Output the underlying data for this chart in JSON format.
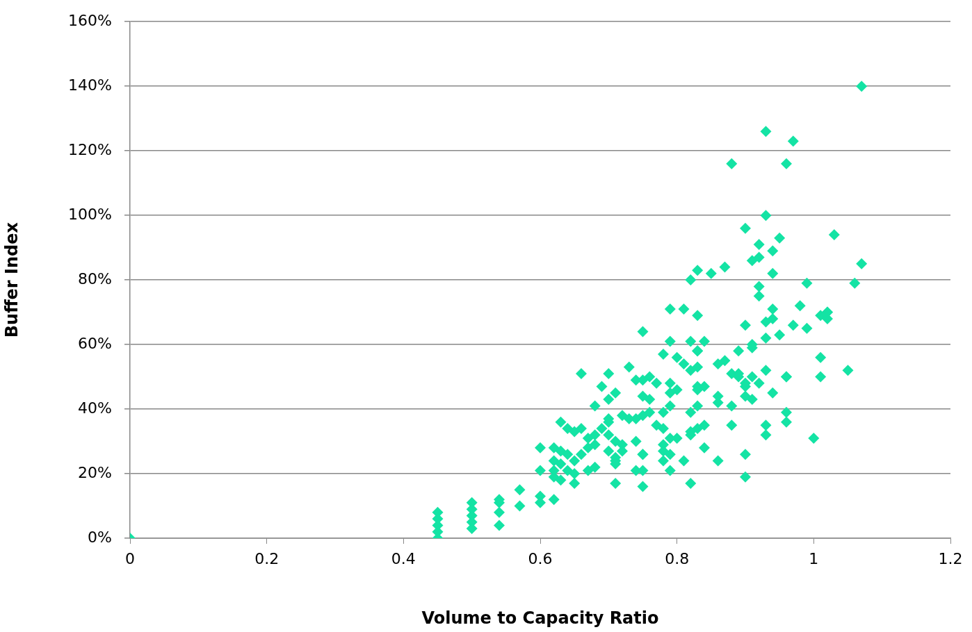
{
  "chart_data": {
    "type": "scatter",
    "xlabel": "Volume to Capacity Ratio",
    "ylabel": "Buffer Index",
    "marker": "diamond",
    "grid": "y",
    "legend": false,
    "xlim": [
      0,
      1.2
    ],
    "xticks": [
      0,
      0.2,
      0.4,
      0.6,
      0.8,
      1,
      1.2
    ],
    "ylim": [
      0,
      160
    ],
    "yticks": [
      {
        "value": 0,
        "label": "0%"
      },
      {
        "value": 20,
        "label": "20%"
      },
      {
        "value": 40,
        "label": "40%"
      },
      {
        "value": 60,
        "label": "60%"
      },
      {
        "value": 80,
        "label": "80%"
      },
      {
        "value": 100,
        "label": "100%"
      },
      {
        "value": 120,
        "label": "120%"
      },
      {
        "value": 140,
        "label": "140%"
      },
      {
        "value": 160,
        "label": "160%"
      }
    ],
    "series": [
      {
        "color": "#14e3a4",
        "x": [
          0,
          1.07,
          0.93,
          0.97,
          0.88,
          0.96,
          0.93,
          0.9,
          1.03,
          0.95,
          0.92,
          0.94,
          0.91,
          0.92,
          1.07,
          0.87,
          0.83,
          0.85,
          0.94,
          0.82,
          1.06,
          0.99,
          0.92,
          0.92,
          0.98,
          0.79,
          0.81,
          0.94,
          1.02,
          1.02,
          0.83,
          1.01,
          1.02,
          0.94,
          0.93,
          0.9,
          0.97,
          0.99,
          0.75,
          0.95,
          0.93,
          0.79,
          0.82,
          0.84,
          0.91,
          0.91,
          0.83,
          0.83,
          0.89,
          0.78,
          1.01,
          0.87,
          0.86,
          0.8,
          0.81,
          0.83,
          0.82,
          0.73,
          1.05,
          0.66,
          0.7,
          0.93,
          0.88,
          0.89,
          0.89,
          1.01,
          0.96,
          0.96,
          0.76,
          0.74,
          0.75,
          0.77,
          0.79,
          0.9,
          0.9,
          0.91,
          0.92,
          0.83,
          0.84,
          0.83,
          0.69,
          0.8,
          0.79,
          0.94,
          0.9,
          0.91,
          0.71,
          0.7,
          0.75,
          0.76,
          0.86,
          0.86,
          0.88,
          0.79,
          0.78,
          0.68,
          0.83,
          0.82,
          0.96,
          0.75,
          0.76,
          0.74,
          0.72,
          0.73,
          0.7,
          0.7,
          0.63,
          0.64,
          0.96,
          0.93,
          0.84,
          0.83,
          0.77,
          0.78,
          0.88,
          0.65,
          0.66,
          0.69,
          0.68,
          0.93,
          0.82,
          0.82,
          0.79,
          0.8,
          1,
          0.67,
          0.68,
          0.67,
          0.7,
          0.71,
          0.74,
          0.72,
          0.72,
          0.84,
          0.78,
          0.78,
          0.79,
          0.6,
          0.62,
          0.63,
          0.64,
          0.66,
          0.65,
          0.7,
          0.71,
          0.71,
          0.75,
          0.75,
          0.9,
          0.62,
          0.62,
          0.78,
          0.81,
          0.86,
          0.63,
          0.64,
          0.67,
          0.68,
          0.71,
          0.6,
          0.79,
          0.74,
          0.75,
          0.65,
          0.62,
          0.9,
          0.63,
          0.65,
          0.71,
          0.82,
          0.75,
          0.57,
          0.6,
          0.6,
          0.54,
          0.54,
          0.62,
          0.5,
          0.5,
          0.5,
          0.5,
          0.5,
          0.57,
          0.54,
          0.54,
          0.45,
          0.45,
          0.45,
          0.45,
          0.45
        ],
        "values": [
          0,
          140,
          126,
          123,
          116,
          116,
          100,
          96,
          94,
          93,
          91,
          89,
          86,
          87,
          85,
          84,
          83,
          82,
          82,
          80,
          79,
          79,
          78,
          75,
          72,
          71,
          71,
          71,
          70,
          70,
          69,
          69,
          68,
          68,
          67,
          66,
          66,
          65,
          64,
          63,
          62,
          61,
          61,
          61,
          60,
          59,
          58,
          58,
          58,
          57,
          56,
          55,
          54,
          56,
          54,
          53,
          52,
          53,
          52,
          51,
          51,
          52,
          51,
          50,
          51,
          50,
          50,
          50,
          50,
          49,
          49,
          48,
          48,
          48,
          47,
          50,
          48,
          47,
          47,
          46,
          47,
          46,
          45,
          45,
          44,
          43,
          45,
          43,
          44,
          43,
          44,
          42,
          41,
          41,
          39,
          41,
          41,
          39,
          39,
          38,
          39,
          37,
          38,
          37,
          37,
          36,
          36,
          34,
          36,
          35,
          35,
          34,
          35,
          34,
          35,
          33,
          34,
          34,
          32,
          32,
          32,
          33,
          31,
          31,
          31,
          31,
          29,
          28,
          32,
          30,
          30,
          29,
          27,
          28,
          29,
          27,
          26,
          28,
          28,
          27,
          26,
          26,
          24,
          27,
          24,
          25,
          26,
          26,
          26,
          24,
          21,
          24,
          24,
          24,
          23,
          21,
          21,
          22,
          23,
          21,
          21,
          21,
          21,
          20,
          19,
          19,
          18,
          17,
          17,
          17,
          16,
          15,
          13,
          11,
          12,
          11,
          12,
          11,
          9,
          7,
          5,
          3,
          10,
          8,
          4,
          8,
          6,
          4,
          2,
          0
        ]
      }
    ]
  }
}
